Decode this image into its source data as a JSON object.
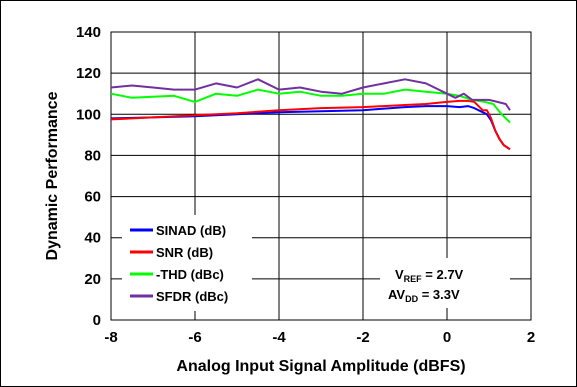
{
  "chart_data": {
    "type": "line",
    "title": "",
    "xlabel": "Analog Input Signal Amplitude (dBFS)",
    "ylabel": "Dynamic Performance",
    "xlim": [
      -8,
      2
    ],
    "ylim": [
      0,
      140
    ],
    "xticks": [
      -8,
      -6,
      -4,
      -2,
      0,
      2
    ],
    "yticks": [
      0,
      20,
      40,
      60,
      80,
      100,
      120,
      140
    ],
    "grid": true,
    "legend_position": "bottom-left",
    "series": [
      {
        "name": "SINAD (dB)",
        "color": "#0000ff",
        "x": [
          -8,
          -7,
          -6,
          -5,
          -4,
          -3,
          -2,
          -1,
          -0.5,
          0,
          0.3,
          0.5,
          0.65,
          0.75,
          0.85,
          0.95,
          1.05,
          1.15,
          1.25,
          1.35,
          1.5
        ],
        "y": [
          98,
          98.5,
          99,
          100,
          101,
          101.5,
          102,
          103.5,
          104,
          104,
          103.5,
          104,
          103,
          102,
          101,
          100,
          97,
          92,
          88,
          85,
          83
        ]
      },
      {
        "name": "SNR (dB)",
        "color": "#ff0000",
        "x": [
          -8,
          -7,
          -6,
          -5,
          -4,
          -3,
          -2,
          -1,
          -0.5,
          0,
          0.3,
          0.5,
          0.65,
          0.75,
          0.85,
          0.95,
          1.05,
          1.15,
          1.25,
          1.35,
          1.5
        ],
        "y": [
          97.5,
          98.5,
          99.5,
          100.5,
          102,
          103,
          103.5,
          104.5,
          105,
          106,
          106.5,
          106.5,
          106,
          104,
          102,
          102,
          98,
          92,
          88,
          85,
          83
        ]
      },
      {
        "name": "-THD (dBc)",
        "color": "#00ff00",
        "x": [
          -8,
          -7.5,
          -6.5,
          -6,
          -5.5,
          -5,
          -4.5,
          -4,
          -3.5,
          -3,
          -2.5,
          -2,
          -1.5,
          -1,
          -0.5,
          0,
          0.3,
          0.6,
          0.9,
          1.1,
          1.3,
          1.5
        ],
        "y": [
          110,
          108,
          109,
          106,
          110,
          109,
          112,
          110,
          111,
          109,
          109,
          110,
          110,
          112,
          111,
          110,
          109,
          107,
          106,
          105,
          100,
          96
        ]
      },
      {
        "name": "SFDR (dBc)",
        "color": "#7030a0",
        "x": [
          -8,
          -7.5,
          -7,
          -6.5,
          -6,
          -5.5,
          -5,
          -4.5,
          -4,
          -3.5,
          -3,
          -2.5,
          -2,
          -1.5,
          -1,
          -0.5,
          0,
          0.2,
          0.4,
          0.6,
          0.8,
          1.0,
          1.2,
          1.4,
          1.5
        ],
        "y": [
          113,
          114,
          113,
          112,
          112,
          115,
          113,
          117,
          112,
          113,
          111,
          110,
          113,
          115,
          117,
          115,
          110,
          108,
          110,
          107,
          107,
          107,
          106,
          105,
          102
        ]
      }
    ],
    "annotation": {
      "line1": {
        "main": "V",
        "sub": "REF",
        "rest": " = 2.7V"
      },
      "line2": {
        "main": "AV",
        "sub": "DD",
        "rest": " = 3.3V"
      }
    }
  }
}
